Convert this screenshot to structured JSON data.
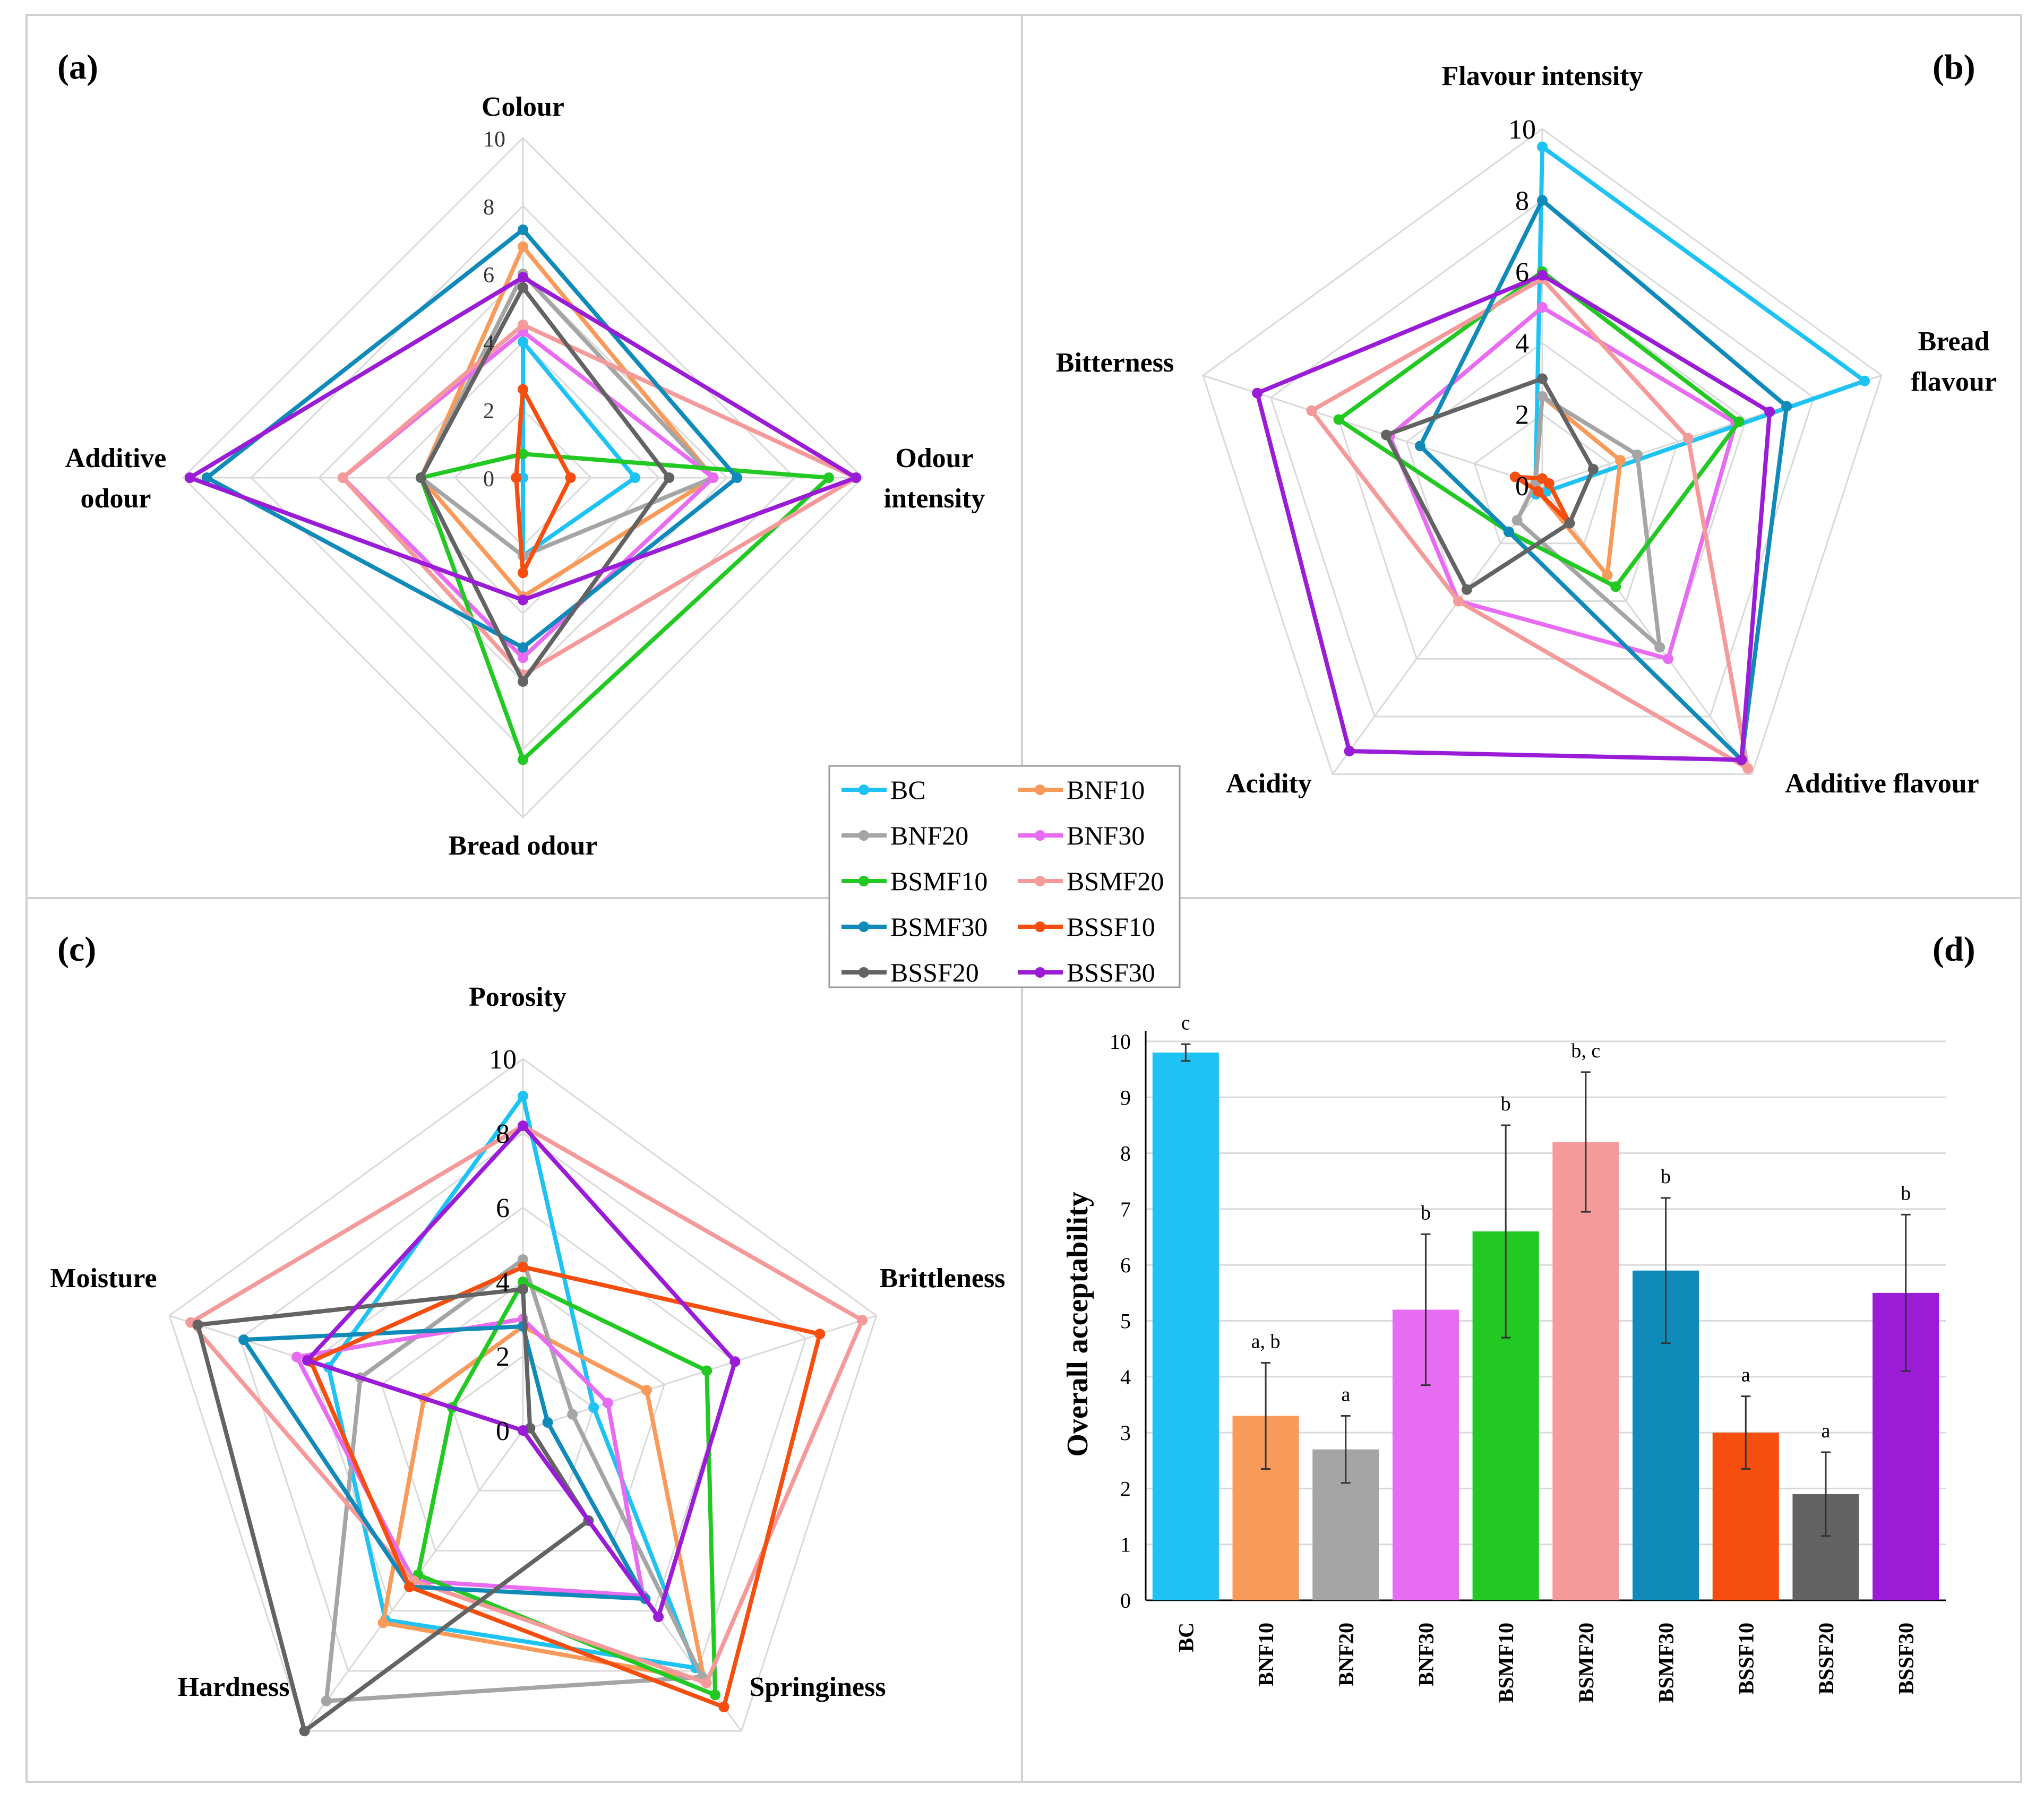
{
  "series": [
    {
      "name": "BC",
      "color": "#1FC3F3"
    },
    {
      "name": "BNF10",
      "color": "#F79A5A"
    },
    {
      "name": "BNF20",
      "color": "#A5A5A5"
    },
    {
      "name": "BNF30",
      "color": "#E86CF2"
    },
    {
      "name": "BSMF10",
      "color": "#22C922"
    },
    {
      "name": "BSMF20",
      "color": "#F59A9A"
    },
    {
      "name": "BSMF30",
      "color": "#0F8AB9"
    },
    {
      "name": "BSSF10",
      "color": "#F54E0F"
    },
    {
      "name": "BSSF20",
      "color": "#636363"
    },
    {
      "name": "BSSF30",
      "color": "#9A1CD6"
    }
  ],
  "chart_data": [
    {
      "type": "radar",
      "panel": "(a)",
      "axes": [
        "Colour",
        "Odour intensity",
        "Bread odour",
        "Additive odour"
      ],
      "rlim": [
        0,
        10
      ],
      "ticks": [
        "0",
        "2",
        "4",
        "6",
        "8",
        "10"
      ],
      "values": {
        "BC": [
          4,
          3.3,
          2.3,
          0
        ],
        "BNF10": [
          6.8,
          5.6,
          3.5,
          3
        ],
        "BNF20": [
          6,
          5.6,
          2.3,
          3
        ],
        "BNF30": [
          4.3,
          5.6,
          5.3,
          5.3
        ],
        "BSMF10": [
          0.7,
          9,
          8.3,
          3
        ],
        "BSMF20": [
          4.5,
          9.8,
          5.8,
          5.3
        ],
        "BSMF30": [
          7.3,
          6.3,
          5,
          9.3
        ],
        "BSSF10": [
          2.6,
          1.4,
          2.8,
          0.2
        ],
        "BSSF20": [
          5.6,
          4.3,
          6,
          3
        ],
        "BSSF30": [
          5.9,
          9.8,
          3.6,
          9.8
        ]
      }
    },
    {
      "type": "radar",
      "panel": "(b)",
      "axes": [
        "Flavour intensity",
        "Bread flavour",
        "Additive flavour",
        "Acidity",
        "Bitterness"
      ],
      "rlim": [
        0,
        10
      ],
      "ticks": [
        "0",
        "2",
        "4",
        "6",
        "8",
        "10"
      ],
      "values": {
        "BC": [
          9.5,
          9.5,
          0.2,
          0.3,
          0.2
        ],
        "BNF10": [
          2.5,
          2.3,
          3.1,
          0.2,
          0.2
        ],
        "BNF20": [
          2.5,
          2.8,
          5.6,
          1.2,
          0.2
        ],
        "BNF30": [
          5,
          5.7,
          6,
          4,
          4.5
        ],
        "BSMF10": [
          6,
          5.8,
          3.5,
          1.6,
          6
        ],
        "BSMF20": [
          5.8,
          4.3,
          9.8,
          4,
          6.8
        ],
        "BSMF30": [
          8,
          7.2,
          9.5,
          1.6,
          3.6
        ],
        "BSSF10": [
          0.2,
          0.2,
          1.3,
          0.2,
          0.8
        ],
        "BSSF20": [
          3,
          1.5,
          1.3,
          3.6,
          4.6
        ],
        "BSSF30": [
          5.9,
          6.7,
          9.5,
          9.2,
          8.4
        ]
      }
    },
    {
      "type": "radar",
      "panel": "(c)",
      "axes": [
        "Porosity",
        "Brittleness",
        "Springiness",
        "Hardness",
        "Moisture"
      ],
      "rlim": [
        0,
        10
      ],
      "ticks": [
        "0",
        "2",
        "4",
        "6",
        "8",
        "10"
      ],
      "values": {
        "BC": [
          9,
          2,
          7.9,
          6.3,
          5.5
        ],
        "BNF10": [
          2.8,
          3.5,
          8.3,
          6.4,
          2.8
        ],
        "BNF20": [
          4.6,
          1.4,
          8.2,
          9,
          4.6
        ],
        "BNF30": [
          3,
          2.4,
          5.5,
          5,
          6.4
        ],
        "BSMF10": [
          4,
          5.2,
          8.8,
          4.8,
          2
        ],
        "BSMF20": [
          8.2,
          9.6,
          8.4,
          5,
          9.4
        ],
        "BSMF30": [
          2.8,
          0.7,
          5.6,
          5.2,
          7.9
        ],
        "BSSF10": [
          4.4,
          8.4,
          9.2,
          5.2,
          6
        ],
        "BSSF20": [
          3.8,
          0.2,
          3,
          10,
          9.2
        ],
        "BSSF30": [
          8.2,
          6,
          6.2,
          0,
          6.1
        ]
      }
    },
    {
      "type": "bar",
      "panel": "(d)",
      "title": "",
      "ylabel": "Overall acceptability",
      "xlabel": "",
      "ylim": [
        0,
        10
      ],
      "yticks": [
        "0",
        "1",
        "2",
        "3",
        "4",
        "5",
        "6",
        "7",
        "8",
        "9",
        "10"
      ],
      "categories": [
        "BC",
        "BNF10",
        "BNF20",
        "BNF30",
        "BSMF10",
        "BSMF20",
        "BSMF30",
        "BSSF10",
        "BSSF20",
        "BSSF30"
      ],
      "values": [
        9.8,
        3.3,
        2.7,
        5.2,
        6.6,
        8.2,
        5.9,
        3.0,
        1.9,
        5.5
      ],
      "errors": [
        0.15,
        0.95,
        0.6,
        1.35,
        1.9,
        1.25,
        1.3,
        0.65,
        0.75,
        1.4
      ],
      "letters": [
        "c",
        "a, b",
        "a",
        "b",
        "b",
        "b, c",
        "b",
        "a",
        "a",
        "b"
      ]
    }
  ]
}
